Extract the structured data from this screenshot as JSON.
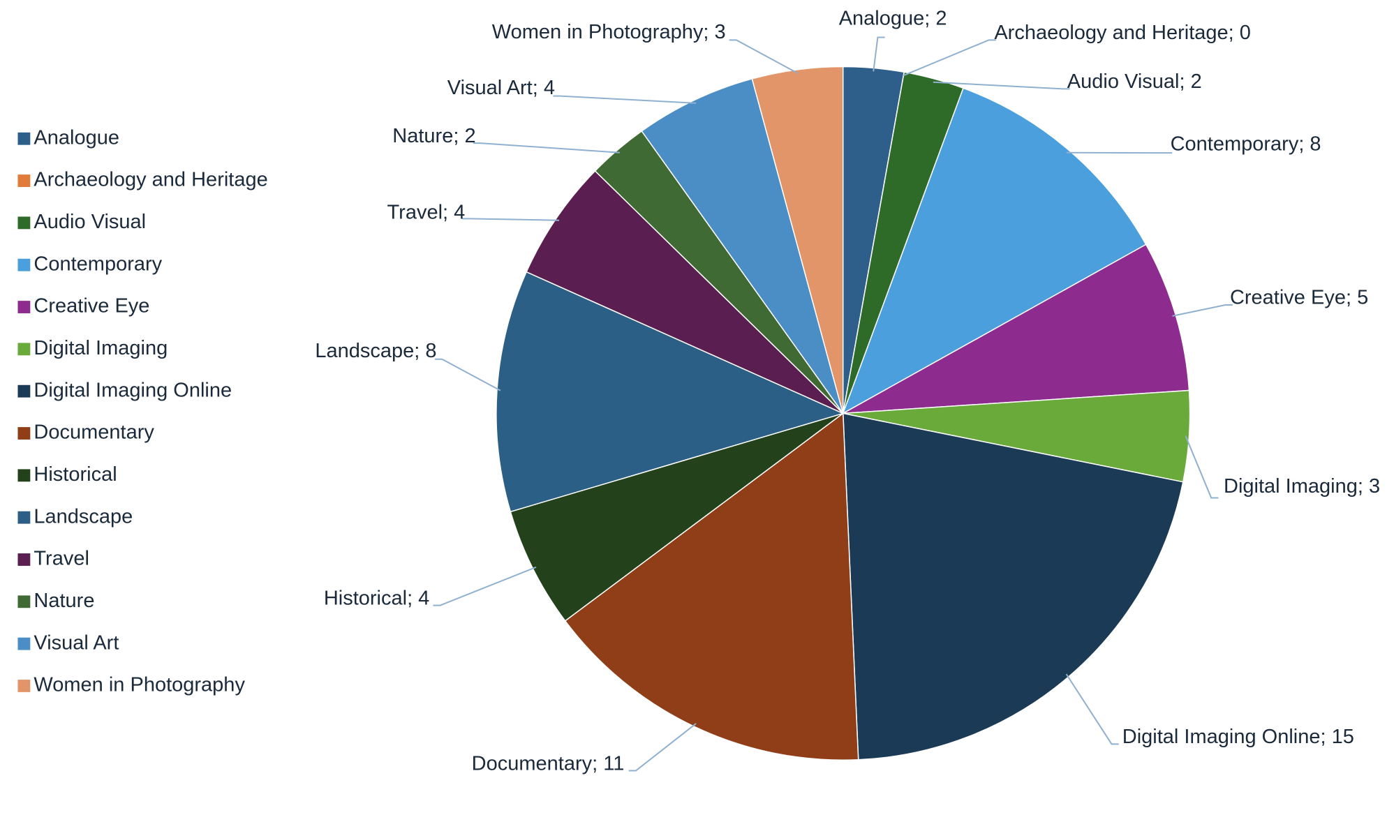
{
  "chart_data": {
    "type": "pie",
    "categories": [
      "Analogue",
      "Archaeology and Heritage",
      "Audio Visual",
      "Contemporary",
      "Creative Eye",
      "Digital Imaging",
      "Digital Imaging Online",
      "Documentary",
      "Historical",
      "Landscape",
      "Travel",
      "Nature",
      "Visual Art",
      "Women in Photography"
    ],
    "values": [
      2,
      0,
      2,
      8,
      5,
      3,
      15,
      11,
      4,
      8,
      4,
      2,
      4,
      3
    ],
    "value_labels": [
      "Analogue; 2",
      "Archaeology and Heritage; 0",
      "Audio Visual; 2",
      "Contemporary; 8",
      "Creative Eye; 5",
      "Digital Imaging; 3",
      "Digital Imaging Online; 15",
      "Documentary; 11",
      "Historical; 4",
      "Landscape; 8",
      "Travel; 4",
      "Nature; 2",
      "Visual Art; 4",
      "Women in Photography; 3"
    ],
    "colors": [
      "#2e5f8a",
      "#e07b39",
      "#2f6b28",
      "#4a9fdc",
      "#8e2b8e",
      "#6aaa3a",
      "#1b3a55",
      "#8f3e18",
      "#23421c",
      "#2b5f86",
      "#5a1f50",
      "#3f6a33",
      "#4b8ec6",
      "#e3956a"
    ],
    "legend": "left"
  }
}
